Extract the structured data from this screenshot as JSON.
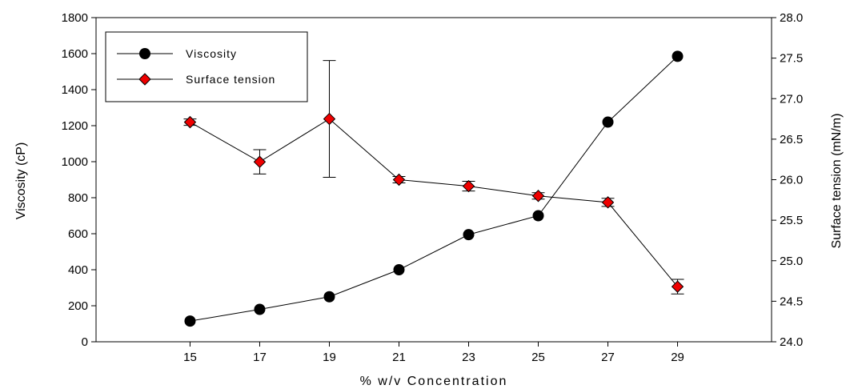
{
  "chart_data": {
    "type": "line",
    "xlabel": "% w/v Concentration",
    "ylabel_left": "Viscosity (cP)",
    "ylabel_right": "Surface tension (mN/m)",
    "xlim": [
      12.3,
      31.7
    ],
    "ylim_left": [
      0,
      1800
    ],
    "ylim_right": [
      24.0,
      28.0
    ],
    "x_ticks": [
      15,
      17,
      19,
      21,
      23,
      25,
      27,
      29
    ],
    "y_ticks_left": [
      0,
      200,
      400,
      600,
      800,
      1000,
      1200,
      1400,
      1600,
      1800
    ],
    "y_ticks_right": [
      "24.0",
      "24.5",
      "25.0",
      "25.5",
      "26.0",
      "26.5",
      "27.0",
      "27.5",
      "28.0"
    ],
    "grid": false,
    "legend_placement": "top-left",
    "series": [
      {
        "name": "Viscosity",
        "axis": "left",
        "marker": "circle",
        "color": "#000000",
        "x": [
          15,
          17,
          19,
          21,
          23,
          25,
          27,
          29
        ],
        "values": [
          115,
          180,
          250,
          400,
          595,
          700,
          1220,
          1585
        ]
      },
      {
        "name": "Surface tension",
        "axis": "right",
        "marker": "diamond",
        "color": "#ee0000",
        "x": [
          15,
          17,
          19,
          21,
          23,
          25,
          27,
          29
        ],
        "values": [
          26.71,
          26.22,
          26.75,
          26.0,
          25.92,
          25.8,
          25.72,
          24.68
        ],
        "errors": [
          0.04,
          0.15,
          0.72,
          0.04,
          0.06,
          0.04,
          0.05,
          0.09
        ]
      }
    ]
  }
}
